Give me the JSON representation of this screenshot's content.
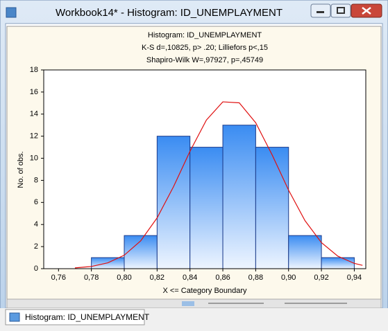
{
  "window": {
    "title": "Workbook14* - Histogram: ID_UNEMPLAYMENT",
    "tab": "Histogram: ID_UNEMPLAYMENT"
  },
  "chart_data": {
    "type": "histogram",
    "title": "Histogram: ID_UNEMPLAYMENT",
    "subtitles": [
      "K-S d=,10825, p> .20; Lilliefors p<,15",
      "Shapiro-Wilk W=,97927, p=,45749"
    ],
    "x_label": "X <= Category Boundary",
    "y_label": "No. of obs.",
    "bins": [
      0.78,
      0.8,
      0.82,
      0.84,
      0.86,
      0.88,
      0.9,
      0.92,
      0.94
    ],
    "counts": [
      1,
      3,
      12,
      11,
      13,
      11,
      3,
      1
    ],
    "color": "#3a8cf2",
    "edge_color": "#1a3a8a",
    "curve": {
      "color": "#e01010",
      "x": [
        0.77,
        0.78,
        0.79,
        0.8,
        0.81,
        0.82,
        0.83,
        0.84,
        0.85,
        0.86,
        0.87,
        0.88,
        0.89,
        0.9,
        0.91,
        0.92,
        0.93,
        0.94,
        0.945
      ],
      "values": [
        0.07,
        0.2,
        0.53,
        1.22,
        2.52,
        4.6,
        7.43,
        10.63,
        13.46,
        15.11,
        15.02,
        13.22,
        10.31,
        7.12,
        4.35,
        2.36,
        1.13,
        0.48,
        0.3
      ]
    },
    "xlim": [
      0.751,
      0.947
    ],
    "ylim": [
      0,
      18
    ],
    "xticks": [
      {
        "value": 0.76,
        "label": "0,76"
      },
      {
        "value": 0.78,
        "label": "0,78"
      },
      {
        "value": 0.8,
        "label": "0,80"
      },
      {
        "value": 0.82,
        "label": "0,82"
      },
      {
        "value": 0.84,
        "label": "0,84"
      },
      {
        "value": 0.86,
        "label": "0,86"
      },
      {
        "value": 0.88,
        "label": "0,88"
      },
      {
        "value": 0.9,
        "label": "0,90"
      },
      {
        "value": 0.92,
        "label": "0,92"
      },
      {
        "value": 0.94,
        "label": "0,94"
      }
    ],
    "yticks": [
      0,
      2,
      4,
      6,
      8,
      10,
      12,
      14,
      16,
      18
    ],
    "grid": false
  }
}
